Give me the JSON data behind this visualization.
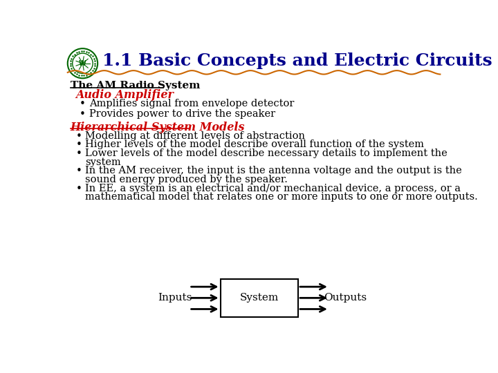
{
  "title": "1.1 Basic Concepts and Electric Circuits",
  "title_color": "#00008B",
  "title_fontsize": 18,
  "bg_color": "#FFFFFF",
  "section1": "The AM Radio System",
  "section1_color": "#000000",
  "subsection1": "Audio Amplifier",
  "subsection1_color": "#CC0000",
  "bullets1": [
    "Amplifies signal from envelope detector",
    "Provides power to drive the speaker"
  ],
  "section2": "Hierarchical System Models",
  "section2_color": "#CC0000",
  "bullet_color": "#000000",
  "bullet_fontsize": 10.5,
  "diagram_label_inputs": "Inputs",
  "diagram_label_system": "System",
  "diagram_label_outputs": "Outputs",
  "wavy_color": "#CC6600",
  "logo_color": "#006600"
}
